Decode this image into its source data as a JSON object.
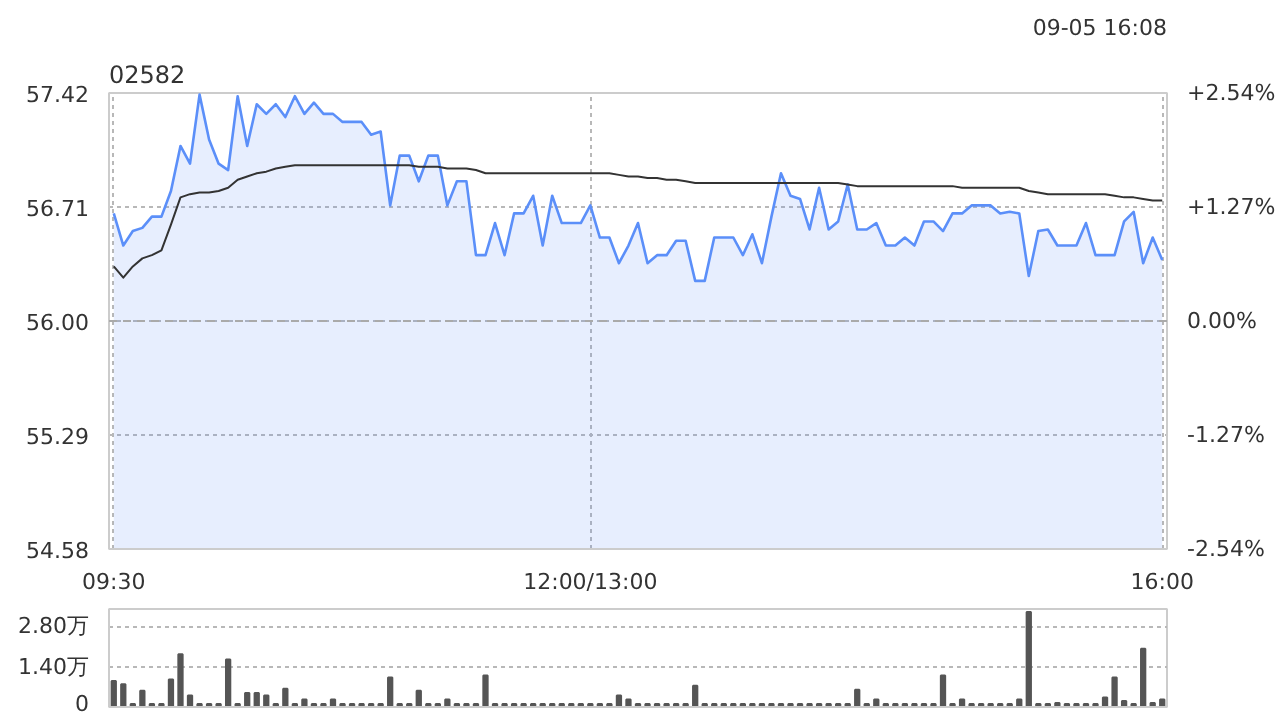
{
  "chart_data": [
    {
      "type": "area",
      "title": "02582",
      "annotations": [
        "09-05 16:08"
      ],
      "grid": true,
      "categories": [
        "09:30",
        null,
        null,
        null,
        null,
        null,
        null,
        null,
        null,
        null,
        null,
        null,
        null,
        null,
        null,
        null,
        null,
        null,
        null,
        null,
        null,
        null,
        null,
        null,
        null,
        null,
        null,
        null,
        null,
        null,
        null,
        null,
        null,
        null,
        null,
        null,
        null,
        null,
        null,
        null,
        null,
        null,
        null,
        null,
        null,
        null,
        null,
        null,
        null,
        null,
        "12:00/13:00",
        null,
        null,
        null,
        null,
        null,
        null,
        null,
        null,
        null,
        null,
        null,
        null,
        null,
        null,
        null,
        null,
        null,
        null,
        null,
        null,
        null,
        null,
        null,
        null,
        null,
        null,
        null,
        null,
        null,
        null,
        null,
        null,
        null,
        null,
        null,
        null,
        null,
        null,
        null,
        null,
        null,
        null,
        null,
        null,
        null,
        null,
        null,
        null,
        null,
        null,
        null,
        null,
        null,
        null,
        null,
        null,
        null,
        null,
        null,
        "16:00"
      ],
      "ylim": [
        54.58,
        57.42
      ],
      "yticks": [
        54.58,
        55.29,
        {
          "value": 56,
          "label": "56.00"
        },
        56.71,
        57.42
      ],
      "y2lim": [
        -2.54,
        2.54
      ],
      "y2ticks": [
        {
          "value": -2.54,
          "label": "-2.54%"
        },
        {
          "value": -1.27,
          "label": "-1.27%"
        },
        {
          "value": 0,
          "label": "0.00%"
        },
        {
          "value": 1.27,
          "label": "+1.27%"
        },
        {
          "value": 2.54,
          "label": "+2.54%"
        }
      ],
      "ref_lines": [
        {
          "axis": "y",
          "value": 56.0,
          "line_style": "dashed",
          "color": "#aaaaaa"
        }
      ],
      "series": [
        {
          "type": "area",
          "color": "#5b8ff9",
          "values": [
            56.67,
            56.47,
            56.56,
            56.58,
            56.65,
            56.65,
            56.81,
            57.09,
            56.98,
            57.41,
            57.13,
            56.98,
            56.94,
            57.4,
            57.09,
            57.35,
            57.29,
            57.35,
            57.27,
            57.4,
            57.29,
            57.36,
            57.29,
            57.29,
            57.24,
            57.24,
            57.24,
            57.16,
            57.18,
            56.72,
            57.03,
            57.03,
            56.87,
            57.03,
            57.03,
            56.72,
            56.87,
            56.87,
            56.41,
            56.41,
            56.61,
            56.41,
            56.67,
            56.67,
            56.78,
            56.47,
            56.78,
            56.61,
            56.61,
            56.61,
            56.72,
            56.52,
            56.52,
            56.36,
            56.47,
            56.61,
            56.36,
            56.41,
            56.41,
            56.5,
            56.5,
            56.25,
            56.25,
            56.52,
            56.52,
            56.52,
            56.41,
            56.54,
            56.36,
            56.65,
            56.92,
            56.78,
            56.76,
            56.57,
            56.83,
            56.57,
            56.62,
            56.85,
            56.57,
            56.57,
            56.61,
            56.47,
            56.47,
            56.52,
            56.47,
            56.62,
            56.62,
            56.56,
            56.67,
            56.67,
            56.72,
            56.72,
            56.72,
            56.67,
            56.68,
            56.67,
            56.28,
            56.56,
            56.57,
            56.47,
            56.47,
            56.47,
            56.61,
            56.41,
            56.41,
            56.41,
            56.62,
            56.68,
            56.36,
            56.52,
            56.38
          ]
        },
        {
          "type": "line",
          "color": "#333333",
          "values": [
            56.34,
            56.27,
            56.34,
            56.39,
            56.41,
            56.44,
            56.6,
            56.77,
            56.79,
            56.8,
            56.8,
            56.81,
            56.83,
            56.88,
            56.9,
            56.92,
            56.93,
            56.95,
            56.96,
            56.97,
            56.97,
            56.97,
            56.97,
            56.97,
            56.97,
            56.97,
            56.97,
            56.97,
            56.97,
            56.97,
            56.97,
            56.97,
            56.96,
            56.96,
            56.96,
            56.95,
            56.95,
            56.95,
            56.94,
            56.92,
            56.92,
            56.92,
            56.92,
            56.92,
            56.92,
            56.92,
            56.92,
            56.92,
            56.92,
            56.92,
            56.92,
            56.92,
            56.92,
            56.91,
            56.9,
            56.9,
            56.89,
            56.89,
            56.88,
            56.88,
            56.87,
            56.86,
            56.86,
            56.86,
            56.86,
            56.86,
            56.86,
            56.86,
            56.86,
            56.86,
            56.86,
            56.86,
            56.86,
            56.86,
            56.86,
            56.86,
            56.86,
            56.85,
            56.84,
            56.84,
            56.84,
            56.84,
            56.84,
            56.84,
            56.84,
            56.84,
            56.84,
            56.84,
            56.84,
            56.83,
            56.83,
            56.83,
            56.83,
            56.83,
            56.83,
            56.83,
            56.81,
            56.8,
            56.79,
            56.79,
            56.79,
            56.79,
            56.79,
            56.79,
            56.79,
            56.78,
            56.77,
            56.77,
            56.76,
            56.75,
            56.75
          ]
        }
      ]
    },
    {
      "type": "bar",
      "grid": "y",
      "categories": [
        null,
        null,
        null,
        null,
        null,
        null,
        null,
        null,
        null,
        null,
        null,
        null,
        null,
        null,
        null,
        null,
        null,
        null,
        null,
        null,
        null,
        null,
        null,
        null,
        null,
        null,
        null,
        null,
        null,
        null,
        null,
        null,
        null,
        null,
        null,
        null,
        null,
        null,
        null,
        null,
        null,
        null,
        null,
        null,
        null,
        null,
        null,
        null,
        null,
        null,
        null,
        null,
        null,
        null,
        null,
        null,
        null,
        null,
        null,
        null,
        null,
        null,
        null,
        null,
        null,
        null,
        null,
        null,
        null,
        null,
        null,
        null,
        null,
        null,
        null,
        null,
        null,
        null,
        null,
        null,
        null,
        null,
        null,
        null,
        null,
        null,
        null,
        null,
        null,
        null,
        null,
        null,
        null,
        null,
        null,
        null,
        null,
        null,
        null,
        null,
        null,
        null,
        null,
        null,
        null,
        null,
        null,
        null,
        null,
        null,
        null
      ],
      "ylim": [
        0,
        3.4
      ],
      "yticks": [
        0,
        {
          "value": 1.4,
          "label": "1.40万"
        },
        {
          "value": 2.8,
          "label": "2.80万"
        }
      ],
      "series": [
        {
          "color": "#555555",
          "values": [
            0.9,
            0.79,
            0.1,
            0.56,
            0.1,
            0.1,
            0.95,
            1.83,
            0.4,
            0.1,
            0.1,
            0.1,
            1.65,
            0.1,
            0.49,
            0.49,
            0.4,
            0.1,
            0.63,
            0.1,
            0.26,
            0.1,
            0.1,
            0.26,
            0.1,
            0.1,
            0.1,
            0.1,
            0.1,
            1.02,
            0.1,
            0.1,
            0.56,
            0.1,
            0.1,
            0.26,
            0.1,
            0.1,
            0.1,
            1.09,
            0.1,
            0.1,
            0.1,
            0.1,
            0.1,
            0.1,
            0.1,
            0.1,
            0.1,
            0.1,
            0.1,
            0.1,
            0.1,
            0.4,
            0.26,
            0.1,
            0.1,
            0.1,
            0.1,
            0.1,
            0.1,
            0.74,
            0.1,
            0.1,
            0.1,
            0.1,
            0.1,
            0.1,
            0.1,
            0.1,
            0.1,
            0.1,
            0.1,
            0.1,
            0.1,
            0.1,
            0.1,
            0.1,
            0.6,
            0.1,
            0.26,
            0.1,
            0.1,
            0.1,
            0.1,
            0.1,
            0.1,
            1.09,
            0.1,
            0.26,
            0.1,
            0.1,
            0.1,
            0.1,
            0.1,
            0.26,
            3.3,
            0.1,
            0.1,
            0.14,
            0.1,
            0.1,
            0.1,
            0.1,
            0.33,
            1.02,
            0.21,
            0.1,
            2.02,
            0.14,
            0.26
          ]
        }
      ]
    }
  ]
}
